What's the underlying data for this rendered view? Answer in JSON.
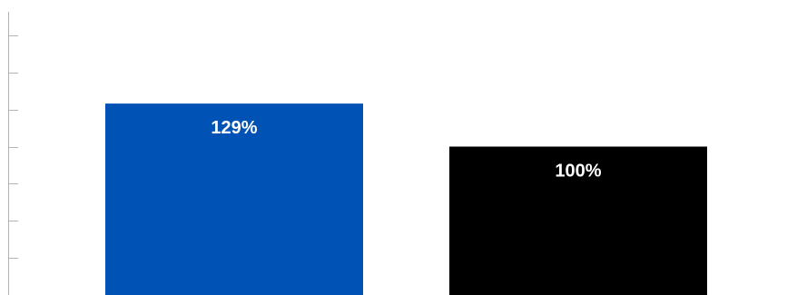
{
  "chart_data": {
    "type": "bar",
    "categories": [
      "",
      ""
    ],
    "values": [
      129,
      100
    ],
    "data_labels": [
      "129%",
      "100%"
    ],
    "colors": [
      "#0053b4",
      "#000000"
    ],
    "ylim": [
      0,
      200
    ],
    "title": "",
    "xlabel": "",
    "ylabel": "",
    "grid": false,
    "legend": "none"
  }
}
